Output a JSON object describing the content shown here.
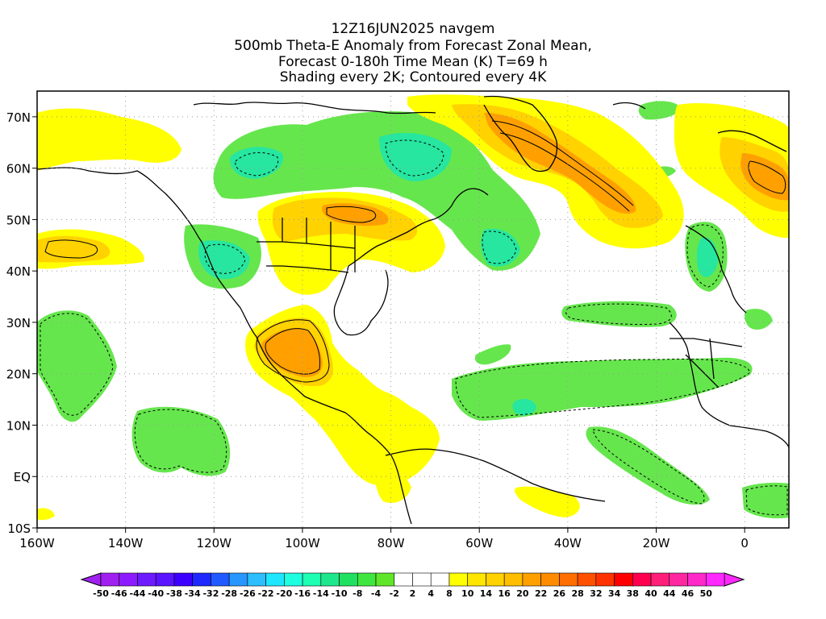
{
  "title_lines": [
    "12Z16JUN2025 navgem",
    "500mb Theta-E Anomaly from Forecast Zonal Mean,",
    "Forecast 0-180h Time Mean (K) T=69 h",
    "Shading every 2K; Contoured every 4K"
  ],
  "map": {
    "lon_range": [
      -160,
      10
    ],
    "lat_range": [
      -10,
      75
    ],
    "lon_ticks": [
      {
        "lon": -160,
        "label": "160W"
      },
      {
        "lon": -140,
        "label": "140W"
      },
      {
        "lon": -120,
        "label": "120W"
      },
      {
        "lon": -100,
        "label": "100W"
      },
      {
        "lon": -80,
        "label": "80W"
      },
      {
        "lon": -60,
        "label": "60W"
      },
      {
        "lon": -40,
        "label": "40W"
      },
      {
        "lon": -20,
        "label": "20W"
      },
      {
        "lon": 0,
        "label": "0"
      }
    ],
    "lat_ticks": [
      {
        "lat": 70,
        "label": "70N"
      },
      {
        "lat": 60,
        "label": "60N"
      },
      {
        "lat": 50,
        "label": "50N"
      },
      {
        "lat": 40,
        "label": "40N"
      },
      {
        "lat": 30,
        "label": "30N"
      },
      {
        "lat": 20,
        "label": "20N"
      },
      {
        "lat": 10,
        "label": "10N"
      },
      {
        "lat": 0,
        "label": "EQ"
      },
      {
        "lat": -10,
        "label": "10S"
      }
    ],
    "grid": true,
    "colors": {
      "green": "#66e64d",
      "green_dark": "#33d966",
      "green_deep": "#26e6a0",
      "yellow": "#ffff00",
      "gold": "#ffd200",
      "orange": "#ffa000",
      "orange_dark": "#ff8a1a"
    }
  },
  "colorbar": {
    "colors": [
      "#a020f0",
      "#8c1cff",
      "#6e1aff",
      "#5a14ff",
      "#3c00ff",
      "#1e28ff",
      "#1e5aff",
      "#2896ff",
      "#2dbeff",
      "#1ee6ff",
      "#1effe0",
      "#1effb4",
      "#1ee68c",
      "#20e060",
      "#40e640",
      "#60e628",
      "#ffffff",
      "#ffffff",
      "#ffffff",
      "#ffff00",
      "#ffe600",
      "#ffd200",
      "#ffbe00",
      "#ffa000",
      "#ff8c00",
      "#ff6e00",
      "#ff5000",
      "#ff3200",
      "#ff0000",
      "#ff0050",
      "#ff1e78",
      "#ff28a0",
      "#ff28c8",
      "#ff28ff"
    ],
    "labels": [
      "-50",
      "-46",
      "-44",
      "-40",
      "-38",
      "-34",
      "-32",
      "-28",
      "-26",
      "-22",
      "-20",
      "-16",
      "-14",
      "-10",
      "-8",
      "-4",
      "-2",
      "2",
      "4",
      "8",
      "10",
      "14",
      "16",
      "20",
      "22",
      "26",
      "28",
      "32",
      "34",
      "38",
      "40",
      "44",
      "46",
      "50"
    ]
  }
}
